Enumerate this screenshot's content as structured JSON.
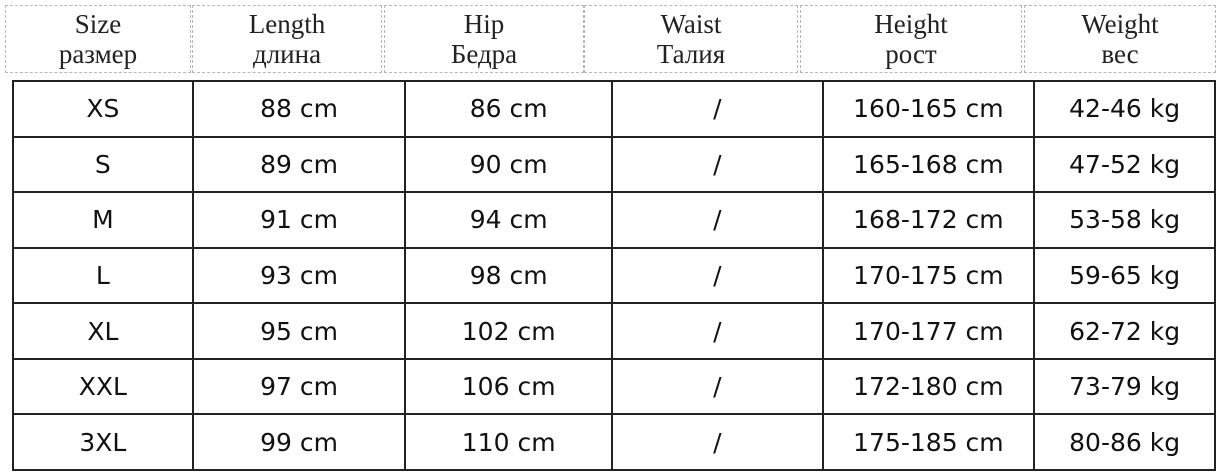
{
  "headers": [
    {
      "en": "Size",
      "ru": "размер"
    },
    {
      "en": "Length",
      "ru": "длина"
    },
    {
      "en": "Hip",
      "ru": "Бедра"
    },
    {
      "en": "Waist",
      "ru": "Талия"
    },
    {
      "en": "Height",
      "ru": "рост"
    },
    {
      "en": "Weight",
      "ru": "вес"
    }
  ],
  "rows": [
    [
      "XS",
      "88 cm",
      "86 cm",
      "/",
      "160-165 cm",
      "42-46 kg"
    ],
    [
      "S",
      "89 cm",
      "90 cm",
      "/",
      "165-168 cm",
      "47-52 kg"
    ],
    [
      "M",
      "91 cm",
      "94 cm",
      "/",
      "168-172 cm",
      "53-58 kg"
    ],
    [
      "L",
      "93 cm",
      "98 cm",
      "/",
      "170-175 cm",
      "59-65 kg"
    ],
    [
      "XL",
      "95 cm",
      "102 cm",
      "/",
      "170-177 cm",
      "62-72 kg"
    ],
    [
      "XXL",
      "97 cm",
      "106 cm",
      "/",
      "172-180 cm",
      "73-79 kg"
    ],
    [
      "3XL",
      "99 cm",
      "110 cm",
      "/",
      "175-185 cm",
      "80-86 kg"
    ]
  ]
}
